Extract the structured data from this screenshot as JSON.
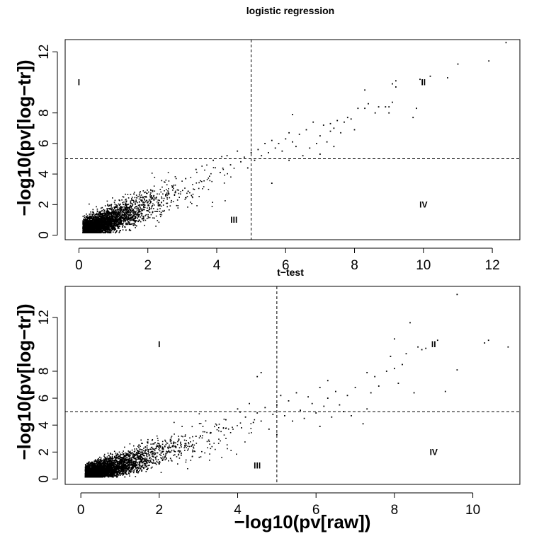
{
  "chart_data": [
    {
      "type": "scatter",
      "title": "logistic regression",
      "xlabel": "",
      "ylabel": "−log10(pv[log−tr])",
      "xlim": [
        -0.4,
        12.8
      ],
      "ylim": [
        -0.3,
        12.8
      ],
      "xticks": [
        0,
        2,
        4,
        6,
        8,
        10,
        12
      ],
      "yticks": [
        0,
        2,
        4,
        6,
        8,
        12
      ],
      "threshold_x": 5,
      "threshold_y": 5,
      "regions": [
        {
          "label": "I",
          "x": 0,
          "y": 10
        },
        {
          "label": "II",
          "x": 10,
          "y": 10
        },
        {
          "label": "III",
          "x": 4.5,
          "y": 1
        },
        {
          "label": "IV",
          "x": 10,
          "y": 2
        }
      ],
      "cloud": {
        "n": 2600,
        "seed": 11,
        "x_min": 0.1,
        "x_scale": 0.75,
        "slope": 0.8,
        "intercept": 0.4,
        "spread": 0.55
      },
      "points": [
        [
          3.1,
          3.7
        ],
        [
          3.4,
          4.3
        ],
        [
          3.9,
          4.9
        ],
        [
          4.1,
          4.1
        ],
        [
          4.3,
          5.2
        ],
        [
          4.4,
          4.6
        ],
        [
          4.6,
          5.5
        ],
        [
          4.7,
          4.8
        ],
        [
          4.8,
          5.1
        ],
        [
          4.9,
          4.4
        ],
        [
          5.0,
          5.4
        ],
        [
          5.1,
          4.9
        ],
        [
          5.2,
          5.6
        ],
        [
          5.3,
          5.2
        ],
        [
          5.4,
          6.0
        ],
        [
          5.5,
          5.4
        ],
        [
          5.6,
          6.2
        ],
        [
          5.6,
          3.4
        ],
        [
          5.7,
          5.7
        ],
        [
          5.8,
          6.0
        ],
        [
          5.9,
          5.5
        ],
        [
          6.0,
          6.3
        ],
        [
          6.1,
          6.7
        ],
        [
          6.1,
          4.9
        ],
        [
          6.2,
          7.9
        ],
        [
          6.2,
          6.1
        ],
        [
          6.3,
          5.8
        ],
        [
          6.4,
          6.6
        ],
        [
          6.5,
          5.2
        ],
        [
          6.6,
          6.9
        ],
        [
          6.7,
          5.7
        ],
        [
          6.8,
          7.4
        ],
        [
          6.9,
          6.0
        ],
        [
          7.0,
          5.3
        ],
        [
          7.0,
          6.5
        ],
        [
          7.1,
          7.2
        ],
        [
          7.2,
          6.1
        ],
        [
          7.3,
          7.3
        ],
        [
          7.3,
          6.8
        ],
        [
          7.4,
          7.0
        ],
        [
          7.4,
          5.8
        ],
        [
          7.5,
          7.5
        ],
        [
          7.6,
          6.7
        ],
        [
          7.7,
          7.4
        ],
        [
          7.8,
          7.7
        ],
        [
          7.9,
          7.6
        ],
        [
          8.0,
          6.9
        ],
        [
          8.1,
          8.3
        ],
        [
          8.3,
          9.5
        ],
        [
          8.3,
          8.3
        ],
        [
          8.4,
          8.6
        ],
        [
          8.6,
          8.0
        ],
        [
          8.7,
          8.4
        ],
        [
          8.9,
          8.4
        ],
        [
          9.0,
          8.0
        ],
        [
          9.0,
          8.4
        ],
        [
          9.1,
          8.7
        ],
        [
          9.1,
          9.9
        ],
        [
          9.2,
          10.1
        ],
        [
          9.2,
          9.7
        ],
        [
          9.7,
          7.7
        ],
        [
          9.8,
          8.3
        ],
        [
          9.9,
          10.2
        ],
        [
          10.2,
          10.4
        ],
        [
          10.7,
          10.3
        ],
        [
          11.0,
          11.2
        ],
        [
          11.9,
          11.4
        ],
        [
          12.4,
          12.6
        ]
      ]
    },
    {
      "type": "scatter",
      "title": "t−test",
      "xlabel": "−log10(pv[raw])",
      "ylabel": "−log10(pv[log−tr])",
      "xlim": [
        -0.4,
        11.2
      ],
      "ylim": [
        -0.4,
        14.3
      ],
      "xticks": [
        0,
        2,
        4,
        6,
        8,
        10
      ],
      "yticks": [
        0,
        2,
        4,
        6,
        8,
        12
      ],
      "threshold_x": 5,
      "threshold_y": 5,
      "regions": [
        {
          "label": "I",
          "x": 2,
          "y": 10
        },
        {
          "label": "II",
          "x": 9,
          "y": 10
        },
        {
          "label": "III",
          "x": 4.5,
          "y": 1
        },
        {
          "label": "IV",
          "x": 9,
          "y": 2
        }
      ],
      "cloud": {
        "n": 2600,
        "seed": 23,
        "x_min": 0.1,
        "x_scale": 0.75,
        "slope": 0.8,
        "intercept": 0.4,
        "spread": 0.55
      },
      "points": [
        [
          3.3,
          3.4
        ],
        [
          3.7,
          4.4
        ],
        [
          4.0,
          5.2
        ],
        [
          4.1,
          3.8
        ],
        [
          4.2,
          4.6
        ],
        [
          4.3,
          5.6
        ],
        [
          4.4,
          4.2
        ],
        [
          4.5,
          7.6
        ],
        [
          4.5,
          4.9
        ],
        [
          4.6,
          7.9
        ],
        [
          4.6,
          4.3
        ],
        [
          4.7,
          5.3
        ],
        [
          4.8,
          3.7
        ],
        [
          4.9,
          4.8
        ],
        [
          5.0,
          5.5
        ],
        [
          5.0,
          3.3
        ],
        [
          5.1,
          6.2
        ],
        [
          5.2,
          4.7
        ],
        [
          5.3,
          5.8
        ],
        [
          5.4,
          4.3
        ],
        [
          5.5,
          6.4
        ],
        [
          5.6,
          5.1
        ],
        [
          5.7,
          4.5
        ],
        [
          5.8,
          6.1
        ],
        [
          5.9,
          5.6
        ],
        [
          6.0,
          4.9
        ],
        [
          6.1,
          6.8
        ],
        [
          6.1,
          3.9
        ],
        [
          6.2,
          5.4
        ],
        [
          6.3,
          7.3
        ],
        [
          6.3,
          6.0
        ],
        [
          6.4,
          4.6
        ],
        [
          6.5,
          6.5
        ],
        [
          6.6,
          5.5
        ],
        [
          6.7,
          5.0
        ],
        [
          6.8,
          6.2
        ],
        [
          6.9,
          4.7
        ],
        [
          7.0,
          6.8
        ],
        [
          7.2,
          4.1
        ],
        [
          7.3,
          7.9
        ],
        [
          7.3,
          5.2
        ],
        [
          7.4,
          6.4
        ],
        [
          7.5,
          7.6
        ],
        [
          7.6,
          6.9
        ],
        [
          7.8,
          8.0
        ],
        [
          7.9,
          9.1
        ],
        [
          8.0,
          10.4
        ],
        [
          8.0,
          8.2
        ],
        [
          8.1,
          7.1
        ],
        [
          8.2,
          8.5
        ],
        [
          8.3,
          9.3
        ],
        [
          8.4,
          11.6
        ],
        [
          8.5,
          6.4
        ],
        [
          8.6,
          9.8
        ],
        [
          8.7,
          9.6
        ],
        [
          8.8,
          9.7
        ],
        [
          9.1,
          10.3
        ],
        [
          9.3,
          6.5
        ],
        [
          9.6,
          13.7
        ],
        [
          9.6,
          8.1
        ],
        [
          10.3,
          10.1
        ],
        [
          10.4,
          10.3
        ],
        [
          10.9,
          9.8
        ]
      ]
    }
  ]
}
